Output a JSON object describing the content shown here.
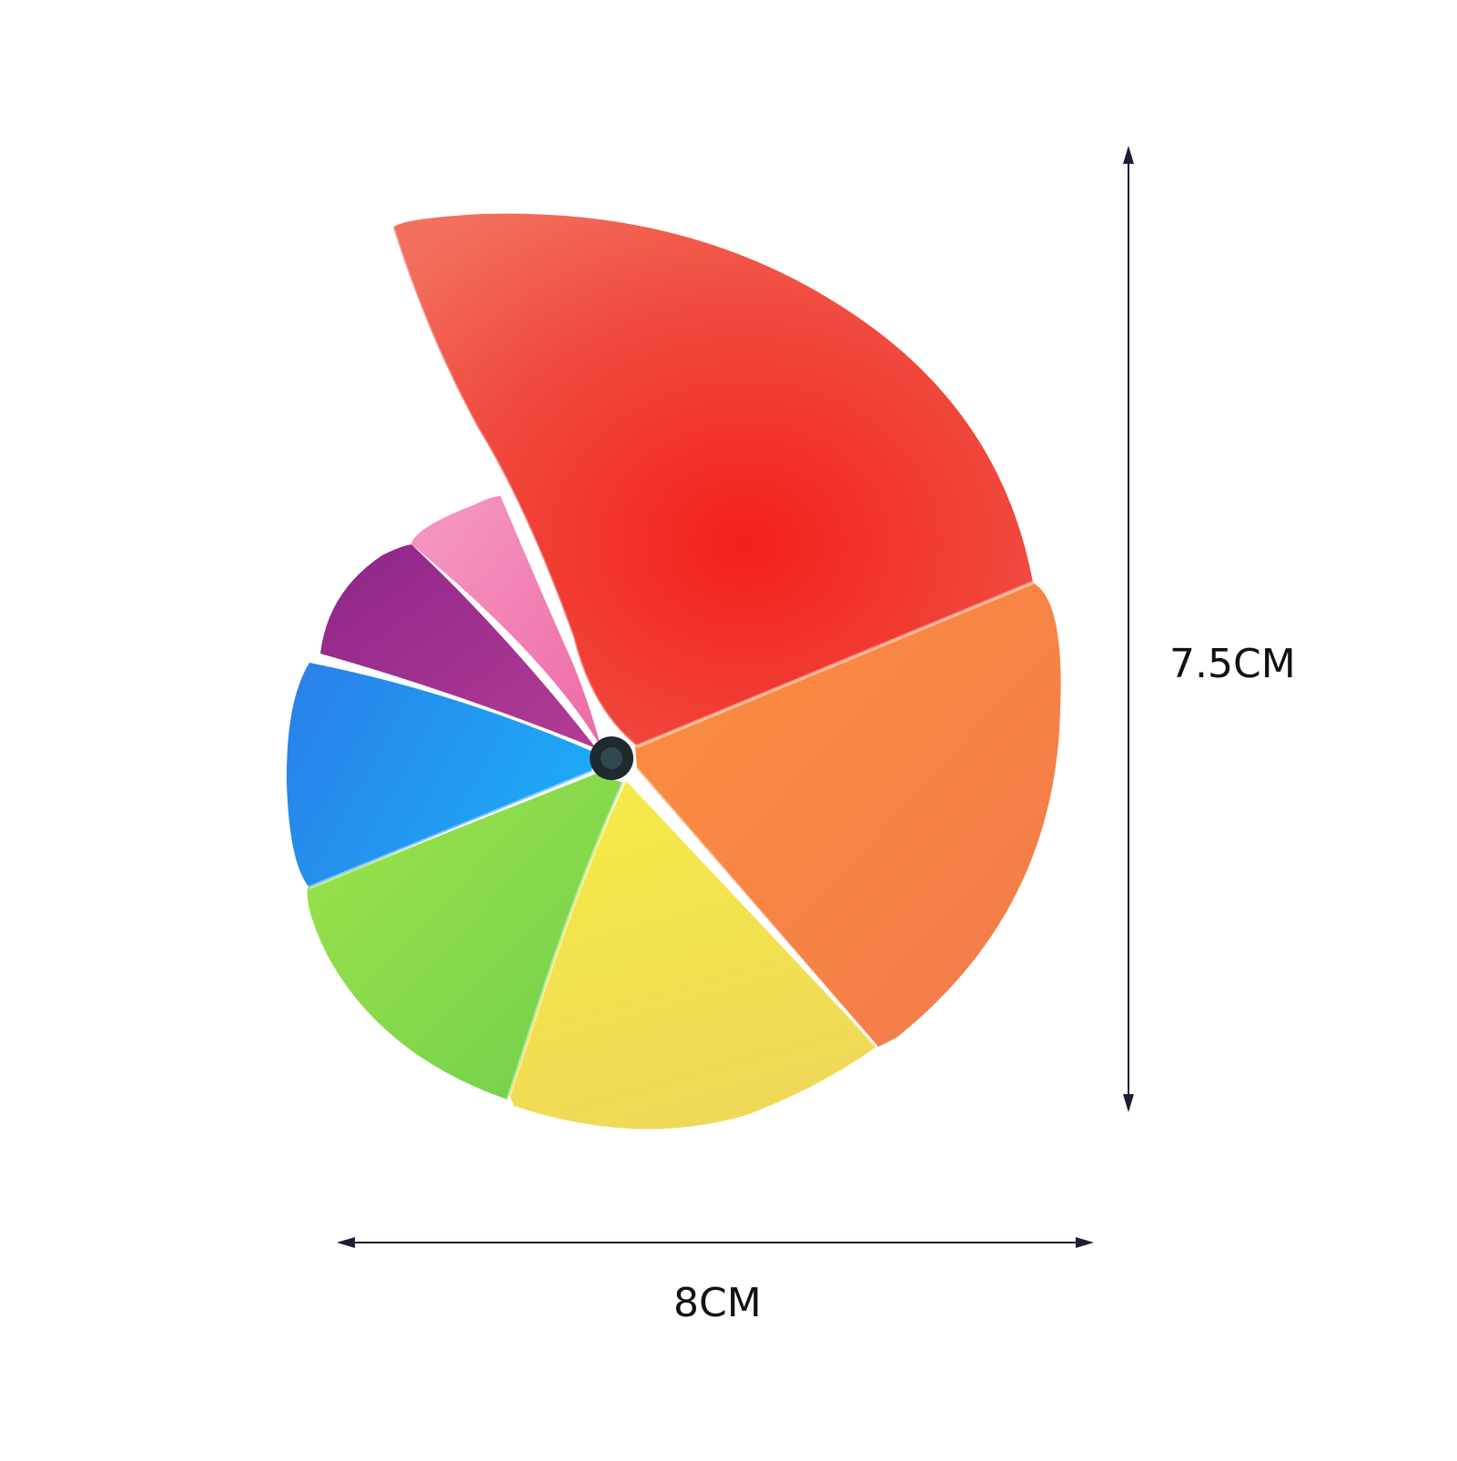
{
  "dimensions": {
    "height_label": "7.5CM",
    "width_label": "8CM"
  },
  "colors": {
    "background": "#ffffff",
    "arrow": "#1c1f33",
    "segment_red": "#f0463a",
    "segment_orange": "#f7873f",
    "segment_yellow": "#f1de52",
    "segment_green": "#8fd94a",
    "segment_blue": "#2496f0",
    "segment_purple": "#9c2d8e",
    "segment_pink": "#f27fb0",
    "hub": "#1e2a2e"
  },
  "product": {
    "segments": [
      "red",
      "orange",
      "yellow",
      "green",
      "blue",
      "purple",
      "pink"
    ]
  }
}
